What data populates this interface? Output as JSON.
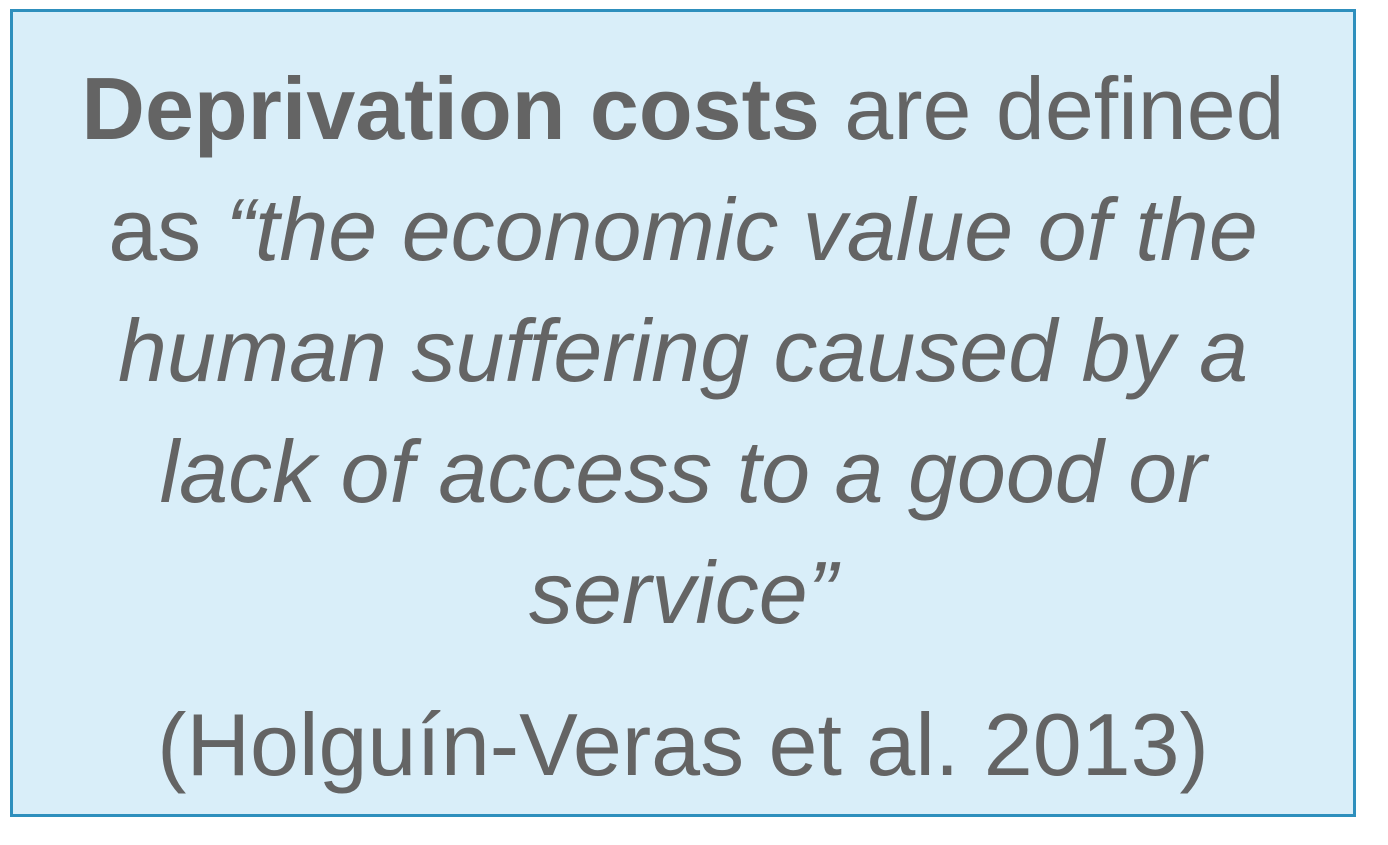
{
  "definition": {
    "term": "Deprivation costs",
    "connector_1": " are defined",
    "connector_2": "as ",
    "quote_line_1": "“the economic value of the",
    "quote_line_2": "human suffering caused by a",
    "quote_line_3": "lack of access to a good or",
    "quote_line_4": "service”"
  },
  "citation": "(Holguín-Veras et al. 2013)",
  "colors": {
    "box_fill": "#d9eef9",
    "box_border": "#2e8fbd",
    "text": "#646464"
  }
}
